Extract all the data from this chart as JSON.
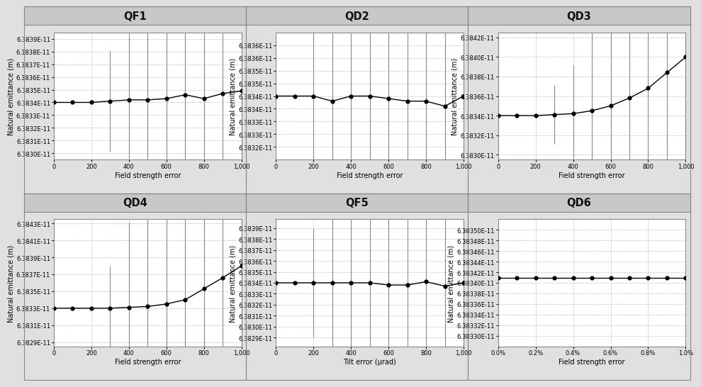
{
  "panels": [
    {
      "title": "QF1",
      "xlabel": "Field strength error",
      "ylabel": "Natural emittance (m)",
      "x": [
        0,
        100,
        200,
        300,
        400,
        500,
        600,
        700,
        800,
        900,
        1000
      ],
      "y": [
        6.3834e-11,
        6.3834e-11,
        6.3834e-11,
        6.38341e-11,
        6.38342e-11,
        6.38342e-11,
        6.38343e-11,
        6.38346e-11,
        6.38343e-11,
        6.38347e-11,
        6.38349e-11
      ],
      "yerr_upper": [
        0.0,
        0.0,
        0.0,
        4e-15,
        7e-15,
        1e-14,
        1.4e-14,
        2.4e-14,
        3.4e-14,
        2e-14,
        2.4e-14
      ],
      "yerr_lower": [
        0.0,
        0.0,
        0.0,
        4e-15,
        7e-15,
        1e-14,
        1.4e-14,
        2.4e-14,
        3.4e-14,
        2e-14,
        2.4e-14
      ],
      "ylim": [
        6.38295e-11,
        6.38395e-11
      ],
      "yticks": [
        6.383e-11,
        6.3831e-11,
        6.3832e-11,
        6.3833e-11,
        6.3834e-11,
        6.3835e-11,
        6.3836e-11,
        6.3837e-11,
        6.3838e-11,
        6.3839e-11
      ],
      "ytick_labels": [
        "6.3830E-11",
        "6.3831E-11",
        "6.3832E-11",
        "6.3833E-11",
        "6.3834E-11",
        "6.3835E-11",
        "6.3836E-11",
        "6.3837E-11",
        "6.3838E-11",
        "6.3839E-11"
      ],
      "xlim": [
        0,
        1000
      ],
      "xticks": [
        0,
        200,
        400,
        600,
        800,
        1000
      ],
      "xtick_labels": [
        "0",
        "200",
        "400",
        "600",
        "800",
        "1,000"
      ]
    },
    {
      "title": "QD2",
      "xlabel": "Field strength error",
      "ylabel": "Natural emittance (m)",
      "x": [
        0,
        100,
        200,
        300,
        400,
        500,
        600,
        700,
        800,
        900,
        1000
      ],
      "y": [
        6.3834e-11,
        6.3834e-11,
        6.3834e-11,
        6.38338e-11,
        6.3834e-11,
        6.3834e-11,
        6.38339e-11,
        6.38338e-11,
        6.38338e-11,
        6.38336e-11,
        6.3834e-11
      ],
      "yerr_upper": [
        0.0,
        0.0,
        3e-15,
        6e-15,
        8e-15,
        1.2e-14,
        1.5e-14,
        3e-14,
        4e-14,
        4e-14,
        4e-14
      ],
      "yerr_lower": [
        0.0,
        0.0,
        3e-15,
        6e-15,
        8e-15,
        1.2e-14,
        1.5e-14,
        3e-14,
        4e-14,
        4e-14,
        4e-14
      ],
      "ylim": [
        6.38315e-11,
        6.38365e-11
      ],
      "yticks": [
        6.3832e-11,
        6.38325e-11,
        6.3833e-11,
        6.38335e-11,
        6.3834e-11,
        6.38345e-11,
        6.3835e-11,
        6.38355e-11,
        6.3836e-11
      ],
      "ytick_labels": [
        "6.3832E-11",
        "6.3833E-11",
        "6.3833E-11",
        "6.3834E-11",
        "6.3834E-11",
        "6.3835E-11",
        "6.3835E-11",
        "6.3836E-11",
        "6.3836E-11"
      ],
      "xlim": [
        0,
        1000
      ],
      "xticks": [
        0,
        200,
        400,
        600,
        800,
        1000
      ],
      "xtick_labels": [
        "0",
        "200",
        "400",
        "600",
        "800",
        "1,000"
      ]
    },
    {
      "title": "QD3",
      "xlabel": "Field strength error",
      "ylabel": "Natural emittance (m)",
      "x": [
        0,
        100,
        200,
        300,
        400,
        500,
        600,
        700,
        800,
        900,
        1000
      ],
      "y": [
        6.3834e-11,
        6.3834e-11,
        6.3834e-11,
        6.38341e-11,
        6.38342e-11,
        6.38345e-11,
        6.3835e-11,
        6.38358e-11,
        6.38368e-11,
        6.38384e-11,
        6.384e-11
      ],
      "yerr_upper": [
        0.0,
        0.0,
        0.0,
        3e-15,
        5e-15,
        1e-14,
        2e-14,
        4e-14,
        5e-14,
        6e-14,
        5e-14
      ],
      "yerr_lower": [
        0.0,
        0.0,
        0.0,
        3e-15,
        5e-15,
        1e-14,
        2e-14,
        4e-14,
        5e-14,
        6e-14,
        5e-14
      ],
      "ylim": [
        6.38295e-11,
        6.38425e-11
      ],
      "yticks": [
        6.383e-11,
        6.3832e-11,
        6.3834e-11,
        6.3836e-11,
        6.3838e-11,
        6.384e-11,
        6.3842e-11
      ],
      "ytick_labels": [
        "6.3830E-11",
        "6.3832E-11",
        "6.3834E-11",
        "6.3836E-11",
        "6.3838E-11",
        "6.3840E-11",
        "6.3842E-11"
      ],
      "xlim": [
        0,
        1000
      ],
      "xticks": [
        0,
        200,
        400,
        600,
        800,
        1000
      ],
      "xtick_labels": [
        "0",
        "200",
        "400",
        "600",
        "800",
        "1,000"
      ]
    },
    {
      "title": "QD4",
      "xlabel": "Field strength error",
      "ylabel": "Natural emittance (m)",
      "x": [
        0,
        100,
        200,
        300,
        400,
        500,
        600,
        700,
        800,
        900,
        1000
      ],
      "y": [
        6.3833e-11,
        6.3833e-11,
        6.3833e-11,
        6.3833e-11,
        6.38331e-11,
        6.38332e-11,
        6.38335e-11,
        6.3834e-11,
        6.38353e-11,
        6.38366e-11,
        6.3838e-11
      ],
      "yerr_upper": [
        0.0,
        0.0,
        0.0,
        5e-15,
        1e-14,
        1.5e-14,
        2e-14,
        3e-14,
        5e-14,
        7e-14,
        1e-13
      ],
      "yerr_lower": [
        0.0,
        0.0,
        0.0,
        5e-15,
        1e-14,
        1.5e-14,
        2e-14,
        3e-14,
        5e-14,
        7e-14,
        1e-13
      ],
      "ylim": [
        6.38285e-11,
        6.38435e-11
      ],
      "yticks": [
        6.3829e-11,
        6.3831e-11,
        6.3833e-11,
        6.3835e-11,
        6.3837e-11,
        6.3839e-11,
        6.3841e-11,
        6.3843e-11
      ],
      "ytick_labels": [
        "6.3829E-11",
        "6.3831E-11",
        "6.3833E-11",
        "6.3835E-11",
        "6.3837E-11",
        "6.3839E-11",
        "6.3841E-11",
        "6.3843E-11"
      ],
      "xlim": [
        0,
        1000
      ],
      "xticks": [
        0,
        200,
        400,
        600,
        800,
        1000
      ],
      "xtick_labels": [
        "0",
        "200",
        "400",
        "600",
        "800",
        "1,000"
      ]
    },
    {
      "title": "QF5",
      "xlabel": "Tilt error (μrad)",
      "ylabel": "Natural emittance (m)",
      "x": [
        0,
        100,
        200,
        300,
        400,
        500,
        600,
        700,
        800,
        900,
        1000
      ],
      "y": [
        6.3834e-11,
        6.3834e-11,
        6.3834e-11,
        6.3834e-11,
        6.3834e-11,
        6.3834e-11,
        6.38338e-11,
        6.38338e-11,
        6.38341e-11,
        6.38337e-11,
        6.3834e-11
      ],
      "yerr_upper": [
        0.0,
        0.0,
        5e-15,
        1e-14,
        2e-14,
        3e-14,
        5e-14,
        6e-14,
        8e-14,
        8e-14,
        1e-13
      ],
      "yerr_lower": [
        0.0,
        0.0,
        5e-15,
        1e-14,
        2e-14,
        3e-14,
        5e-14,
        6e-14,
        8e-14,
        8e-14,
        1e-13
      ],
      "ylim": [
        6.38282e-11,
        6.38398e-11
      ],
      "yticks": [
        6.3829e-11,
        6.383e-11,
        6.3831e-11,
        6.3832e-11,
        6.3833e-11,
        6.3834e-11,
        6.3835e-11,
        6.3836e-11,
        6.3837e-11,
        6.3838e-11,
        6.3839e-11
      ],
      "ytick_labels": [
        "6.3829E-11",
        "6.3830E-11",
        "6.3831E-11",
        "6.3832E-11",
        "6.3833E-11",
        "6.3834E-11",
        "6.3835E-11",
        "6.3836E-11",
        "6.3837E-11",
        "6.3838E-11",
        "6.3839E-11"
      ],
      "xlim": [
        0,
        1000
      ],
      "xticks": [
        0,
        200,
        400,
        600,
        800,
        1000
      ],
      "xtick_labels": [
        "0",
        "200",
        "400",
        "600",
        "800",
        "1,000"
      ]
    },
    {
      "title": "QD6",
      "xlabel": "Field strength error",
      "ylabel": "Natural emittance (m)",
      "x": [
        0,
        1,
        2,
        3,
        4,
        5,
        6,
        7,
        8,
        9,
        10
      ],
      "y": [
        6.38341e-11,
        6.38341e-11,
        6.38341e-11,
        6.38341e-11,
        6.38341e-11,
        6.38341e-11,
        6.38341e-11,
        6.38341e-11,
        6.38341e-11,
        6.38341e-11,
        6.38341e-11
      ],
      "yerr_upper": [
        0.0,
        0.0,
        0.0,
        0.0,
        0.0,
        0.0,
        0.0,
        0.0,
        0.0,
        0.0,
        0.0
      ],
      "yerr_lower": [
        0.0,
        0.0,
        0.0,
        0.0,
        0.0,
        0.0,
        0.0,
        0.0,
        0.0,
        0.0,
        0.0
      ],
      "ylim": [
        6.38328e-11,
        6.38352e-11
      ],
      "yticks": [
        6.3833e-11,
        6.38332e-11,
        6.38334e-11,
        6.38336e-11,
        6.38338e-11,
        6.3834e-11,
        6.38342e-11,
        6.38344e-11,
        6.38346e-11,
        6.38348e-11,
        6.3835e-11
      ],
      "ytick_labels": [
        "6.38330E-11",
        "6.38332E-11",
        "6.38334E-11",
        "6.38336E-11",
        "6.38338E-11",
        "6.38340E-11",
        "6.38342E-11",
        "6.38344E-11",
        "6.38346E-11",
        "6.38348E-11",
        "6.38350E-11"
      ],
      "xlim": [
        0,
        10
      ],
      "xticks": [
        0,
        2,
        4,
        6,
        8,
        10
      ],
      "xtick_labels": [
        "0.0%",
        "0.2%",
        "0.4%",
        "0.6%",
        "0.8%",
        "1.0%"
      ]
    }
  ],
  "bg_color": "#e0e0e0",
  "plot_bg": "#ffffff",
  "header_bg": "#c8c8c8",
  "grid_color": "#c0c0c0",
  "line_color": "#000000",
  "errorbar_color": "#888888",
  "marker_size": 3.5,
  "line_width": 1.0,
  "header_fontsize": 10.5,
  "tick_fontsize": 6.0,
  "label_fontsize": 7.0,
  "border_color": "#888888"
}
